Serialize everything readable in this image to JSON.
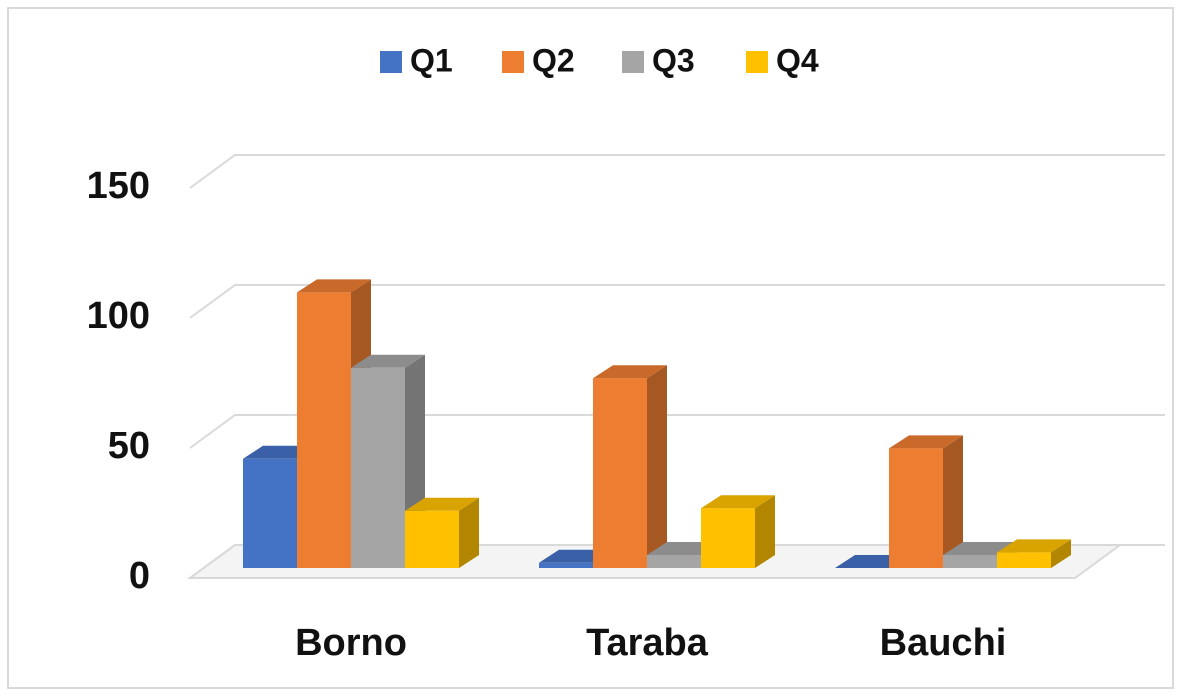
{
  "chart_data": {
    "type": "bar3d",
    "categories": [
      "Borno",
      "Taraba",
      "Bauchi"
    ],
    "series": [
      {
        "name": "Q1",
        "color": "#4472c4",
        "values": [
          42,
          2,
          0
        ]
      },
      {
        "name": "Q2",
        "color": "#ed7d31",
        "values": [
          106,
          73,
          46
        ]
      },
      {
        "name": "Q3",
        "color": "#a5a5a5",
        "values": [
          77,
          5,
          5
        ]
      },
      {
        "name": "Q4",
        "color": "#ffc000",
        "values": [
          22,
          23,
          6
        ]
      }
    ],
    "ylim": [
      0,
      150
    ],
    "yticks": [
      0,
      50,
      100,
      150
    ],
    "grid": true,
    "legend": "top"
  }
}
